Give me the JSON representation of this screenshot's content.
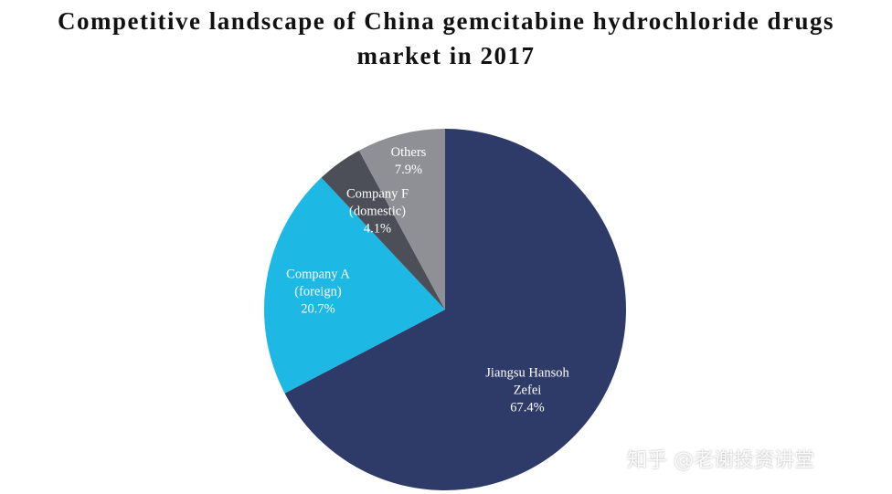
{
  "chart_data": {
    "type": "pie",
    "title_lines": [
      "Competitive landscape of China gemcitabine hydrochloride drugs",
      "market in 2017"
    ],
    "slices": [
      {
        "label_lines": [
          "Jiangsu Hansoh",
          "Zefei"
        ],
        "value": 67.4,
        "value_text": "67.4%",
        "color": "#2e3a68"
      },
      {
        "label_lines": [
          "Company A",
          "(foreign)"
        ],
        "value": 20.7,
        "value_text": "20.7%",
        "color": "#1db8e3"
      },
      {
        "label_lines": [
          "Company F",
          "(domestic)"
        ],
        "value": 4.1,
        "value_text": "4.1%",
        "color": "#4d4f58"
      },
      {
        "label_lines": [
          "Others"
        ],
        "value": 7.9,
        "value_text": "7.9%",
        "color": "#8e9096"
      }
    ],
    "start_angle": "12 o'clock",
    "direction": "clockwise",
    "legend": "none"
  },
  "watermark": {
    "text": "知乎 @老谢投资讲堂"
  }
}
